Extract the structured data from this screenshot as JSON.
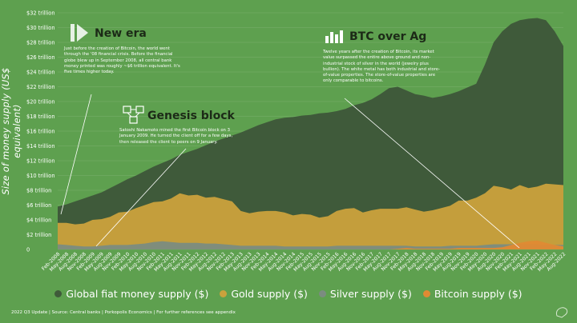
{
  "chart_data": {
    "type": "area",
    "ylabel": "Size of money supply (US$ equivalent)",
    "y_ticks": [
      "0",
      "$2 trillion",
      "$4 trillion",
      "$6 trillion",
      "$8 trillion",
      "$10 trillion",
      "$12 trillion",
      "$14 trillion",
      "$16 trillion",
      "$18 trillion",
      "$20 trillion",
      "$22 trillion",
      "$24 trillion",
      "$26 trillion",
      "$28 trillion",
      "$30 trillion",
      "$32 trillion"
    ],
    "ylim": [
      0,
      32
    ],
    "x_ticks": [
      "Feb-2008",
      "May-2008",
      "Aug-2008",
      "Nov-2008",
      "Feb-2009",
      "May-2009",
      "Aug-2009",
      "Nov-2009",
      "Feb-2010",
      "May-2010",
      "Aug-2010",
      "Nov-2010",
      "Feb-2011",
      "May-2011",
      "Aug-2011",
      "Nov-2011",
      "Feb-2012",
      "May-2012",
      "Aug-2012",
      "Nov-2012",
      "Feb-2013",
      "May-2013",
      "Aug-2013",
      "Nov-2013",
      "Feb-2014",
      "May-2014",
      "Aug-2014",
      "Nov-2014",
      "Feb-2015",
      "May-2015",
      "Aug-2015",
      "Nov-2015",
      "Feb-2016",
      "May-2016",
      "Aug-2016",
      "Nov-2016",
      "Feb-2017",
      "May-2017",
      "Aug-2017",
      "Nov-2017",
      "Feb-2018",
      "May-2018",
      "Aug-2018",
      "Nov-2018",
      "Feb-2019",
      "May-2019",
      "Aug-2019",
      "Nov-2019",
      "Feb-2020",
      "May-2020",
      "Aug-2020",
      "Nov-2020",
      "Feb-2021",
      "May-2021",
      "Aug-2021",
      "Nov-2021",
      "Feb-2022",
      "May-2022",
      "Aug-2022"
    ],
    "series": [
      {
        "name": "Global fiat money supply ($)",
        "color": "#3f5a3a",
        "values": [
          5.8,
          6.1,
          6.5,
          6.9,
          7.3,
          7.7,
          8.3,
          8.9,
          9.5,
          10.0,
          10.6,
          11.2,
          11.7,
          12.2,
          12.8,
          13.2,
          13.6,
          14.1,
          14.6,
          15.0,
          15.4,
          15.8,
          16.3,
          16.8,
          17.2,
          17.6,
          17.8,
          17.9,
          18.1,
          18.2,
          18.4,
          18.5,
          18.7,
          19.0,
          19.5,
          19.8,
          20.3,
          21.0,
          21.8,
          22.0,
          21.5,
          21.0,
          20.8,
          20.5,
          20.7,
          21.0,
          21.4,
          21.9,
          22.4,
          25.0,
          28.0,
          29.5,
          30.5,
          31.0,
          31.2,
          31.3,
          31.0,
          29.5,
          27.5
        ]
      },
      {
        "name": "Gold supply ($)",
        "color": "#cba23c",
        "values": [
          3.6,
          3.6,
          3.4,
          3.5,
          4.0,
          4.1,
          4.4,
          5.0,
          5.1,
          5.6,
          6.0,
          6.4,
          6.5,
          6.9,
          7.6,
          7.3,
          7.4,
          7.0,
          7.1,
          6.8,
          6.5,
          5.2,
          4.9,
          5.1,
          5.2,
          5.2,
          5.0,
          4.6,
          4.8,
          4.7,
          4.3,
          4.5,
          5.2,
          5.5,
          5.6,
          5.0,
          5.3,
          5.5,
          5.5,
          5.5,
          5.7,
          5.4,
          5.1,
          5.3,
          5.6,
          5.9,
          6.6,
          6.6,
          7.0,
          7.6,
          8.6,
          8.4,
          8.1,
          8.7,
          8.3,
          8.5,
          8.9,
          8.8,
          8.7
        ]
      },
      {
        "name": "Silver supply ($)",
        "color": "#7b8c80",
        "values": [
          0.7,
          0.6,
          0.5,
          0.4,
          0.4,
          0.5,
          0.6,
          0.6,
          0.6,
          0.7,
          0.8,
          1.0,
          1.1,
          1.0,
          0.9,
          0.9,
          0.9,
          0.8,
          0.8,
          0.7,
          0.6,
          0.5,
          0.5,
          0.5,
          0.5,
          0.5,
          0.4,
          0.4,
          0.4,
          0.4,
          0.4,
          0.4,
          0.5,
          0.5,
          0.5,
          0.5,
          0.5,
          0.5,
          0.5,
          0.5,
          0.5,
          0.4,
          0.4,
          0.4,
          0.4,
          0.5,
          0.5,
          0.5,
          0.5,
          0.6,
          0.7,
          0.7,
          0.7,
          0.7,
          0.7,
          0.7,
          0.6,
          0.6,
          0.6
        ]
      },
      {
        "name": "Bitcoin supply ($)",
        "color": "#e08a33",
        "values": [
          0,
          0,
          0,
          0,
          0,
          0,
          0,
          0,
          0,
          0,
          0,
          0,
          0,
          0,
          0,
          0,
          0,
          0,
          0,
          0,
          0,
          0,
          0,
          0,
          0,
          0,
          0,
          0,
          0,
          0,
          0,
          0,
          0,
          0,
          0,
          0,
          0,
          0,
          0,
          0.1,
          0.2,
          0.1,
          0.1,
          0.1,
          0.1,
          0.1,
          0.2,
          0.2,
          0.2,
          0.2,
          0.2,
          0.3,
          0.6,
          0.9,
          1.1,
          1.2,
          0.9,
          0.6,
          0.4
        ]
      }
    ],
    "legend_position": "bottom",
    "grid": true
  },
  "annotations": [
    {
      "id": "new-era",
      "title": "New era",
      "body": "Just before the creation of Bitcoin, the world went through the '08 financial crisis. Before the financial globe blew up in September 2008, all central bank money printed was roughly ~$6 trillion equivalent. It's five times higher today."
    },
    {
      "id": "genesis",
      "title": "Genesis block",
      "body": "Satoshi Nakamoto mined the first Bitcoin block on 3 January 2009. He turned the client off for a few days, then released the client to peers on 9 January."
    },
    {
      "id": "btc-ag",
      "title": "BTC over Ag",
      "body": "Twelve years after the creation of Bitcoin, its market value surpassed the entire above ground and non-industrial stock of silver in the world (jewelry plus bullion). The white metal has both industrial and store-of-value properties. The store-of-value properties are only comparable to bitcoins."
    }
  ],
  "footer": "2022 Q3 Update | Source: Central banks | Porkopolis Economics | For further references see appendix",
  "icons": {
    "new_era": "play-forward-icon",
    "genesis": "blockchain-icon",
    "btc": "bar-chart-icon",
    "logo": "brand-logo-icon"
  }
}
